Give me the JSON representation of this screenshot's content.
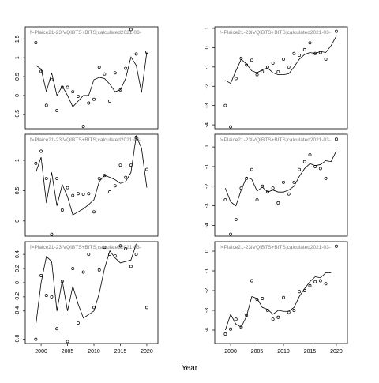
{
  "xlabel": "Year",
  "chart_data": [
    {
      "type": "line",
      "title": "f=Plaice21-23IVQIBTS+BITS;calculated2021-03-",
      "x": [
        1999,
        2000,
        2001,
        2002,
        2003,
        2004,
        2005,
        2006,
        2007,
        2008,
        2009,
        2010,
        2011,
        2012,
        2013,
        2014,
        2015,
        2016,
        2017,
        2018,
        2019,
        2020
      ],
      "xlim": [
        1997,
        2022.1
      ],
      "ylim": [
        -0.88,
        1.82
      ],
      "yticks": [
        -0.5,
        0.0,
        0.5,
        1.0,
        1.5
      ],
      "series": [
        {
          "marker": "o",
          "color": "#000000",
          "values": [
            1.4,
            0.64,
            -0.26,
            0.42,
            -0.4,
            0.22,
            0.22,
            0.1,
            -0.02,
            -0.82,
            -0.2,
            -0.1,
            0.75,
            0.57,
            -0.15,
            0.6,
            0.15,
            0.72,
            1.75,
            1.1,
            null,
            1.15
          ]
        },
        {
          "marker": "line",
          "color": "#000000",
          "values": [
            0.8,
            0.7,
            0.1,
            0.6,
            0.0,
            0.25,
            0.0,
            -0.3,
            -0.15,
            0.0,
            0.0,
            0.42,
            0.48,
            0.45,
            0.3,
            0.1,
            0.15,
            0.45,
            1.02,
            0.8,
            0.08,
            1.15
          ]
        }
      ]
    },
    {
      "type": "line",
      "title": "f=Plaice21-23IVQIBTS+BITS;calculated2021-03-",
      "x": [
        1999,
        2000,
        2001,
        2002,
        2003,
        2004,
        2005,
        2006,
        2007,
        2008,
        2009,
        2010,
        2011,
        2012,
        2013,
        2014,
        2015,
        2016,
        2017,
        2018,
        2019,
        2020
      ],
      "xlim": [
        1997,
        2022.1
      ],
      "ylim": [
        -4.2,
        1.08
      ],
      "yticks": [
        -4,
        -3,
        -2,
        -1,
        0,
        1
      ],
      "series": [
        {
          "marker": "o",
          "color": "#000000",
          "values": [
            -3.0,
            -4.1,
            -1.6,
            -0.55,
            -0.9,
            -0.65,
            -1.4,
            -1.25,
            -1.0,
            -0.8,
            -1.25,
            -0.6,
            -1.0,
            -0.3,
            -0.4,
            -0.1,
            0.25,
            -0.3,
            -0.25,
            -0.6,
            null,
            0.85
          ]
        },
        {
          "marker": "line",
          "color": "#000000",
          "values": [
            -1.7,
            -1.85,
            -1.2,
            -0.6,
            -0.85,
            -1.2,
            -1.3,
            -1.15,
            -1.05,
            -1.3,
            -1.4,
            -1.4,
            -1.35,
            -1.0,
            -0.6,
            -0.35,
            -0.25,
            -0.3,
            -0.2,
            -0.25,
            0.1,
            0.6
          ]
        }
      ]
    },
    {
      "type": "line",
      "title": "f=Plaice21-23IVQIBTS+BITS;calculated2021-03-",
      "x": [
        1999,
        2000,
        2001,
        2002,
        2003,
        2004,
        2005,
        2006,
        2007,
        2008,
        2009,
        2010,
        2011,
        2012,
        2013,
        2014,
        2015,
        2016,
        2017,
        2018,
        2019,
        2020
      ],
      "xlim": [
        1997,
        2022.1
      ],
      "ylim": [
        -0.25,
        1.43
      ],
      "yticks": [
        0.0,
        0.5,
        1.0
      ],
      "series": [
        {
          "marker": "o",
          "color": "#000000",
          "values": [
            0.95,
            1.15,
            0.7,
            -0.22,
            0.7,
            0.18,
            0.55,
            0.42,
            0.45,
            0.44,
            0.45,
            0.15,
            0.7,
            0.75,
            0.48,
            0.58,
            0.92,
            0.72,
            0.92,
            1.38,
            null,
            0.85
          ]
        },
        {
          "marker": "line",
          "color": "#000000",
          "values": [
            0.8,
            1.05,
            0.3,
            0.8,
            0.25,
            0.6,
            0.4,
            0.1,
            0.15,
            0.2,
            0.27,
            0.35,
            0.65,
            0.75,
            0.72,
            0.68,
            0.62,
            0.65,
            0.8,
            1.4,
            1.2,
            0.55
          ]
        }
      ]
    },
    {
      "type": "line",
      "title": "f=Plaice21-23IVQIBTS+BITS;calculated2021-03-",
      "x": [
        1999,
        2000,
        2001,
        2002,
        2003,
        2004,
        2005,
        2006,
        2007,
        2008,
        2009,
        2010,
        2011,
        2012,
        2013,
        2014,
        2015,
        2016,
        2017,
        2018,
        2019,
        2020
      ],
      "xlim": [
        1997,
        2022.1
      ],
      "ylim": [
        -4.55,
        0.65
      ],
      "yticks": [
        -4,
        -3,
        -2,
        -1,
        0
      ],
      "series": [
        {
          "marker": "o",
          "color": "#000000",
          "values": [
            -2.7,
            -4.45,
            -3.7,
            -2.1,
            -1.6,
            -1.15,
            -2.7,
            -2.0,
            -2.3,
            -2.1,
            -2.85,
            -1.8,
            -2.4,
            -1.8,
            -1.15,
            -0.75,
            -0.4,
            -1.0,
            -1.1,
            -1.6,
            null,
            0.4
          ]
        },
        {
          "marker": "line",
          "color": "#000000",
          "values": [
            -2.1,
            -2.8,
            -3.0,
            -2.2,
            -1.55,
            -1.65,
            -2.25,
            -2.05,
            -2.3,
            -2.2,
            -2.3,
            -2.3,
            -2.2,
            -2.0,
            -1.5,
            -1.1,
            -0.85,
            -0.95,
            -0.9,
            -0.7,
            -0.75,
            -0.2
          ]
        }
      ]
    },
    {
      "type": "line",
      "title": "f=Plaice21-23IVQIBTS+BITS;calculated2021-03-",
      "x": [
        1999,
        2000,
        2001,
        2002,
        2003,
        2004,
        2005,
        2006,
        2007,
        2008,
        2009,
        2010,
        2011,
        2012,
        2013,
        2014,
        2015,
        2016,
        2017,
        2018,
        2019,
        2020
      ],
      "xlim": [
        1997,
        2022.1
      ],
      "ylim": [
        -0.86,
        0.58
      ],
      "yticks": [
        -0.8,
        -0.4,
        -0.2,
        0.0,
        0.2,
        0.4
      ],
      "xticks": [
        2000,
        2005,
        2010,
        2015,
        2020
      ],
      "series": [
        {
          "marker": "o",
          "color": "#000000",
          "values": [
            -0.8,
            0.1,
            -0.18,
            -0.2,
            -0.65,
            0.02,
            -0.83,
            0.2,
            -0.57,
            0.15,
            0.4,
            -0.35,
            0.18,
            0.5,
            0.4,
            0.38,
            0.52,
            0.48,
            0.23,
            0.4,
            null,
            -0.35
          ]
        },
        {
          "marker": "line",
          "color": "#000000",
          "values": [
            -0.6,
            0.0,
            0.37,
            0.3,
            -0.4,
            0.03,
            -0.4,
            -0.05,
            -0.3,
            -0.5,
            -0.45,
            -0.4,
            -0.15,
            0.2,
            0.45,
            0.35,
            0.28,
            0.3,
            0.32,
            0.55,
            null,
            null
          ]
        }
      ]
    },
    {
      "type": "line",
      "title": "f=Plaice21-23IVQIBTS+BITS;calculated2021-03-",
      "x": [
        1999,
        2000,
        2001,
        2002,
        2003,
        2004,
        2005,
        2006,
        2007,
        2008,
        2009,
        2010,
        2011,
        2012,
        2013,
        2014,
        2015,
        2016,
        2017,
        2018,
        2019,
        2020
      ],
      "xlim": [
        1997,
        2022.1
      ],
      "ylim": [
        -4.68,
        0.48
      ],
      "yticks": [
        -4,
        -3,
        -2,
        -1,
        0
      ],
      "xticks": [
        2000,
        2005,
        2010,
        2015,
        2020
      ],
      "series": [
        {
          "marker": "o",
          "color": "#000000",
          "values": [
            -4.2,
            -3.95,
            -3.45,
            -3.85,
            -3.25,
            -1.5,
            -2.45,
            -2.4,
            -3.0,
            -3.45,
            -3.35,
            -2.35,
            -3.1,
            -3.0,
            -2.05,
            -2.0,
            -1.75,
            -1.55,
            -1.5,
            -1.65,
            null,
            0.25
          ]
        },
        {
          "marker": "line",
          "color": "#000000",
          "values": [
            -4.0,
            -3.2,
            -3.7,
            -3.85,
            -3.3,
            -2.3,
            -2.4,
            -2.85,
            -2.95,
            -3.2,
            -3.0,
            -3.05,
            -3.05,
            -2.85,
            -2.3,
            -1.9,
            -1.55,
            -1.3,
            -1.35,
            -1.1,
            -1.1,
            null
          ]
        }
      ]
    }
  ]
}
